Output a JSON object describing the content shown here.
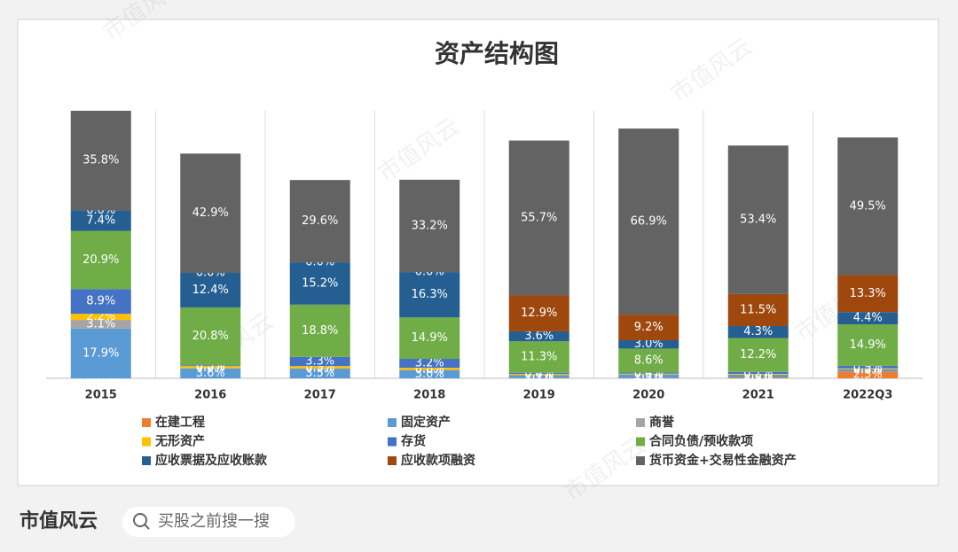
{
  "chart_data": {
    "type": "stacked_bar",
    "title": "资产结构图",
    "categories": [
      "2015",
      "2016",
      "2017",
      "2018",
      "2019",
      "2020",
      "2021",
      "2022Q3"
    ],
    "series": [
      {
        "name": "在建工程",
        "color": "#ed7d31",
        "values": [
          0.0,
          0.0,
          0.0,
          0.0,
          0.1,
          0.1,
          0.3,
          2.5
        ],
        "value_labels": [
          "0.0%",
          "0.0%",
          "0.0%",
          "0.0%",
          "0.1%",
          "0.1%",
          "0.3%",
          "2.5%"
        ]
      },
      {
        "name": "固定资产",
        "color": "#5b9bd5",
        "values": [
          17.9,
          3.6,
          3.5,
          3.0,
          1.1,
          1.3,
          1.0,
          0.8
        ],
        "value_labels": [
          "17.9%",
          "3.6%",
          "3.5%",
          "3.0%",
          "1.1%",
          "1.3%",
          "1.0%",
          "0.8%"
        ]
      },
      {
        "name": "商誉",
        "color": "#a5a5a5",
        "values": [
          3.1,
          0.0,
          0.0,
          0.0,
          0.0,
          0.0,
          0.0,
          0.0
        ],
        "value_labels": [
          "3.1%",
          "0.0%",
          "0.0%",
          "0.0%",
          "0.0%",
          "0.0%",
          "0.0%",
          "0.0%"
        ]
      },
      {
        "name": "无形资产",
        "color": "#ffc000",
        "values": [
          2.2,
          0.8,
          0.9,
          0.8,
          0.4,
          0.3,
          0.3,
          0.3
        ],
        "value_labels": [
          "2.2%",
          "0.8%",
          "0.9%",
          "0.8%",
          "0.4%",
          "0.3%",
          "0.3%",
          "0.3%"
        ]
      },
      {
        "name": "存货",
        "color": "#4472c4",
        "values": [
          8.9,
          0.3,
          3.3,
          3.2,
          0.4,
          0.4,
          0.7,
          0.9
        ],
        "value_labels": [
          "8.9%",
          "0.3%",
          "3.3%",
          "3.2%",
          "0.4%",
          "0.4%",
          "0.7%",
          "0.9%"
        ]
      },
      {
        "name": "合同负债/预收款项",
        "color": "#70ad47",
        "values": [
          20.9,
          20.8,
          18.8,
          14.9,
          11.3,
          8.6,
          12.2,
          14.9
        ],
        "value_labels": [
          "20.9%",
          "20.8%",
          "18.8%",
          "14.9%",
          "11.3%",
          "8.6%",
          "12.2%",
          "14.9%"
        ]
      },
      {
        "name": "应收票据及应收账款",
        "color": "#255e91",
        "values": [
          7.4,
          12.4,
          15.2,
          16.3,
          3.6,
          3.0,
          4.3,
          4.4
        ],
        "value_labels": [
          "7.4%",
          "12.4%",
          "15.2%",
          "16.3%",
          "3.6%",
          "3.0%",
          "4.3%",
          "4.4%"
        ]
      },
      {
        "name": "应收款项融资",
        "color": "#9e480e",
        "values": [
          0.0,
          0.0,
          0.0,
          0.0,
          12.9,
          9.2,
          11.5,
          13.3
        ],
        "value_labels": [
          "0.0%",
          "0.0%",
          "0.0%",
          "0.0%",
          "12.9%",
          "9.2%",
          "11.5%",
          "13.3%"
        ]
      },
      {
        "name": "货币资金+交易性金融资产",
        "color": "#636363",
        "values": [
          35.8,
          42.9,
          29.6,
          33.2,
          55.7,
          66.9,
          53.4,
          49.5
        ],
        "value_labels": [
          "35.8%",
          "42.9%",
          "29.6%",
          "33.2%",
          "55.7%",
          "66.9%",
          "53.4%",
          "49.5%"
        ]
      }
    ]
  },
  "footer": {
    "brand": "市值风云",
    "search": "买股之前搜一搜"
  },
  "watermark": "市值风云"
}
